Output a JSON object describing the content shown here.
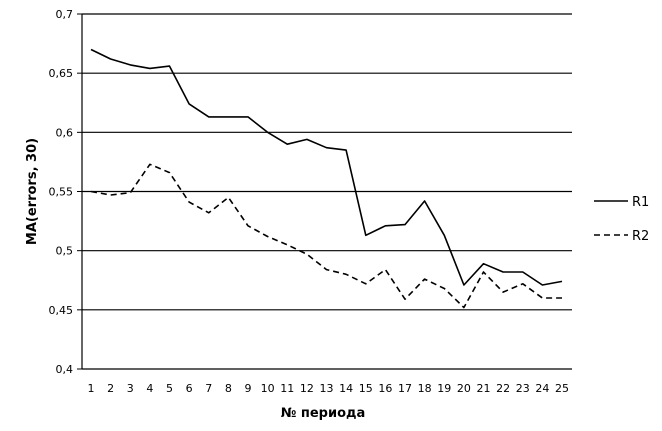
{
  "chart_data": {
    "type": "line",
    "title": "",
    "xlabel": "№ периода",
    "ylabel": "MA(errors, 30)",
    "ylim": [
      0.4,
      0.7
    ],
    "y_ticks": [
      "0,4",
      "0,45",
      "0,5",
      "0,55",
      "0,6",
      "0,65",
      "0,7"
    ],
    "y_tick_values": [
      0.4,
      0.45,
      0.5,
      0.55,
      0.6,
      0.65,
      0.7
    ],
    "grid": "horizontal",
    "legend_position": "right",
    "categories": [
      "1",
      "2",
      "3",
      "4",
      "5",
      "6",
      "7",
      "8",
      "9",
      "10",
      "11",
      "12",
      "13",
      "14",
      "15",
      "16",
      "17",
      "18",
      "19",
      "20",
      "21",
      "22",
      "23",
      "24",
      "25"
    ],
    "series": [
      {
        "name": "R1",
        "style": "solid",
        "color": "#000000",
        "values": [
          0.67,
          0.662,
          0.657,
          0.654,
          0.656,
          0.624,
          0.613,
          0.613,
          0.613,
          0.6,
          0.59,
          0.594,
          0.587,
          0.585,
          0.513,
          0.521,
          0.522,
          0.542,
          0.513,
          0.471,
          0.489,
          0.482,
          0.482,
          0.471,
          0.474
        ]
      },
      {
        "name": "R2",
        "style": "dashed",
        "color": "#000000",
        "values": [
          0.55,
          0.547,
          0.549,
          0.573,
          0.566,
          0.541,
          0.532,
          0.545,
          0.521,
          0.512,
          0.505,
          0.497,
          0.484,
          0.48,
          0.472,
          0.484,
          0.459,
          0.476,
          0.468,
          0.452,
          0.482,
          0.465,
          0.472,
          0.46,
          0.46
        ]
      }
    ]
  }
}
